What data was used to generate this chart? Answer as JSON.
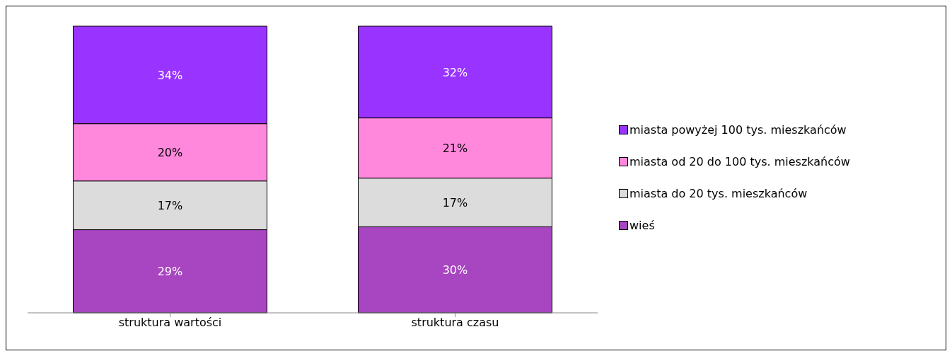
{
  "chart_data": {
    "type": "bar",
    "stacked": true,
    "categories": [
      "struktura wartości",
      "struktura czasu"
    ],
    "series": [
      {
        "name": "wieś",
        "color": "#a845c0",
        "values": [
          29,
          30
        ],
        "value_labels": [
          "29%",
          "30%"
        ]
      },
      {
        "name": "miasta do 20 tys. mieszkańców",
        "color": "#dcdcdc",
        "values": [
          17,
          17
        ],
        "value_labels": [
          "17%",
          "17%"
        ]
      },
      {
        "name": "miasta od 20 do 100 tys. mieszkańców",
        "color": "#ff88dd",
        "values": [
          20,
          21
        ],
        "value_labels": [
          "20%",
          "21%"
        ]
      },
      {
        "name": "miasta powyżej 100 tys. mieszkańców",
        "color": "#9933ff",
        "values": [
          34,
          32
        ],
        "value_labels": [
          "34%",
          "32%"
        ]
      }
    ],
    "legend": "right",
    "tick_labels": "x",
    "grid": false
  }
}
